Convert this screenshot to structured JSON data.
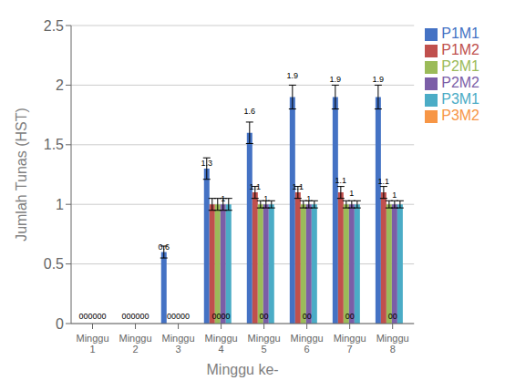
{
  "chart_data": {
    "type": "bar",
    "xlabel": "Minggu ke-",
    "ylabel": "Jumlah Tunas (HST)",
    "categories": [
      "Minggu\n1",
      "Minggu\n2",
      "Minggu\n3",
      "Minggu\n4",
      "Minggu\n5",
      "Minggu\n6",
      "Minggu\n7",
      "Minggu\n8"
    ],
    "series": [
      {
        "name": "P1M1",
        "color": "#4472C4",
        "values": [
          0.0,
          0.0,
          0.6,
          1.3,
          1.6,
          1.9,
          1.9,
          1.9
        ],
        "errors": [
          0.0,
          0.0,
          0.05,
          0.09,
          0.09,
          0.1,
          0.1,
          0.1
        ],
        "value_labels": [
          null,
          null,
          "0.6",
          "1.3",
          "1.6",
          "1.9",
          "1.9",
          "1.9"
        ]
      },
      {
        "name": "P1M2",
        "color": "#C0504D",
        "values": [
          0.0,
          0.0,
          0.0,
          1.0,
          1.1,
          1.1,
          1.1,
          1.1
        ],
        "errors": [
          0.0,
          0.0,
          0.0,
          0.05,
          0.05,
          0.05,
          0.05,
          0.05
        ],
        "value_labels": [
          null,
          null,
          null,
          null,
          "1.1",
          "1.1",
          "1.1",
          "1.1"
        ]
      },
      {
        "name": "P2M1",
        "color": "#9BBB59",
        "values": [
          0.0,
          0.0,
          0.0,
          1.0,
          1.0,
          1.0,
          1.0,
          1.0
        ],
        "errors": [
          0.0,
          0.0,
          0.0,
          0.05,
          0.03,
          0.03,
          0.03,
          0.03
        ]
      },
      {
        "name": "P2M2",
        "color": "#7B5EA7",
        "values": [
          0.0,
          0.0,
          0.0,
          1.0,
          1.0,
          1.0,
          1.0,
          1.0
        ],
        "errors": [
          0.0,
          0.0,
          0.0,
          0.05,
          0.03,
          0.03,
          0.03,
          0.03
        ],
        "value_labels": [
          null,
          null,
          null,
          "1",
          "1",
          "1",
          "1",
          "1"
        ]
      },
      {
        "name": "P3M1",
        "color": "#4BACC6",
        "values": [
          0.0,
          0.0,
          0.0,
          1.0,
          1.0,
          1.0,
          1.0,
          1.0
        ],
        "errors": [
          0.0,
          0.0,
          0.0,
          0.05,
          0.03,
          0.03,
          0.03,
          0.03
        ]
      },
      {
        "name": "P3M2",
        "color": "#F79646",
        "values": [
          0.0,
          0.0,
          0.0,
          0.0,
          0.0,
          0.0,
          0.0,
          0.0
        ],
        "errors": [
          0.0,
          0.0,
          0.0,
          0.0,
          0.0,
          0.0,
          0.0,
          0.0
        ]
      }
    ],
    "annotations": [
      {
        "text": "000000",
        "x": "Minggu\n1",
        "y": 0
      },
      {
        "text": "000000",
        "x": "Minggu\n2",
        "y": 0
      },
      {
        "text": "00000",
        "x": "Minggu\n3",
        "y": 0
      },
      {
        "text": "0000",
        "x": "Minggu\n4",
        "y": 0
      },
      {
        "text": "00",
        "x": "Minggu\n5",
        "y": 0
      },
      {
        "text": "00",
        "x": "Minggu\n6",
        "y": 0
      },
      {
        "text": "00",
        "x": "Minggu\n7",
        "y": 0
      },
      {
        "text": "00",
        "x": "Minggu\n8",
        "y": 0
      }
    ],
    "ylim": [
      0,
      2.5
    ],
    "yticks": [
      0,
      0.5,
      1.0,
      1.5,
      2.0,
      2.5
    ],
    "grid": true
  }
}
